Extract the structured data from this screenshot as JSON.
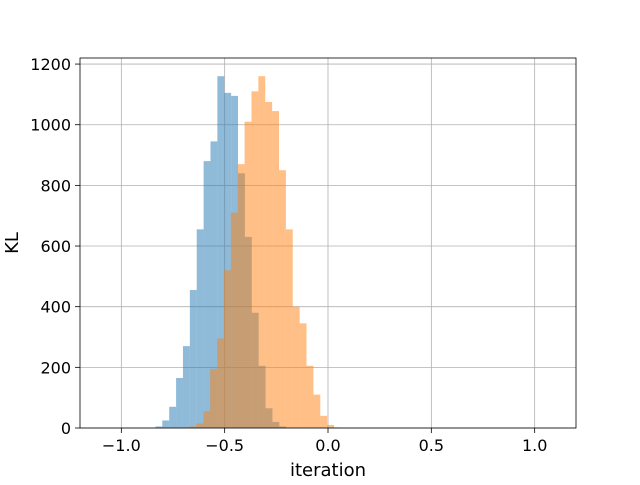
{
  "chart_data": {
    "type": "bar",
    "title": "",
    "xlabel": "iteration",
    "ylabel": "KL",
    "xlim": [
      -1.2,
      1.2
    ],
    "ylim": [
      0,
      1220
    ],
    "grid": true,
    "x_ticks": [
      {
        "value": -1.0,
        "label": "−1.0"
      },
      {
        "value": -0.5,
        "label": "−0.5"
      },
      {
        "value": 0.0,
        "label": "0.0"
      },
      {
        "value": 0.5,
        "label": "0.5"
      },
      {
        "value": 1.0,
        "label": "1.0"
      }
    ],
    "y_ticks": [
      {
        "value": 0,
        "label": "0"
      },
      {
        "value": 200,
        "label": "200"
      },
      {
        "value": 400,
        "label": "400"
      },
      {
        "value": 600,
        "label": "600"
      },
      {
        "value": 800,
        "label": "800"
      },
      {
        "value": 1000,
        "label": "1000"
      },
      {
        "value": 1200,
        "label": "1200"
      }
    ],
    "series": [
      {
        "color": "#1f77b4",
        "opacity": 0.5,
        "bin_start": -0.835,
        "bin_width": 0.0333,
        "values": [
          5,
          25,
          70,
          165,
          270,
          455,
          655,
          880,
          945,
          1160,
          1105,
          1095,
          840,
          630,
          380,
          205,
          65,
          20,
          5
        ]
      },
      {
        "color": "#ff7f0e",
        "opacity": 0.5,
        "bin_start": -0.67,
        "bin_width": 0.0333,
        "values": [
          5,
          15,
          55,
          195,
          295,
          520,
          710,
          870,
          1010,
          1110,
          1160,
          1075,
          1045,
          850,
          655,
          400,
          345,
          205,
          110,
          40,
          10,
          2
        ]
      }
    ]
  }
}
